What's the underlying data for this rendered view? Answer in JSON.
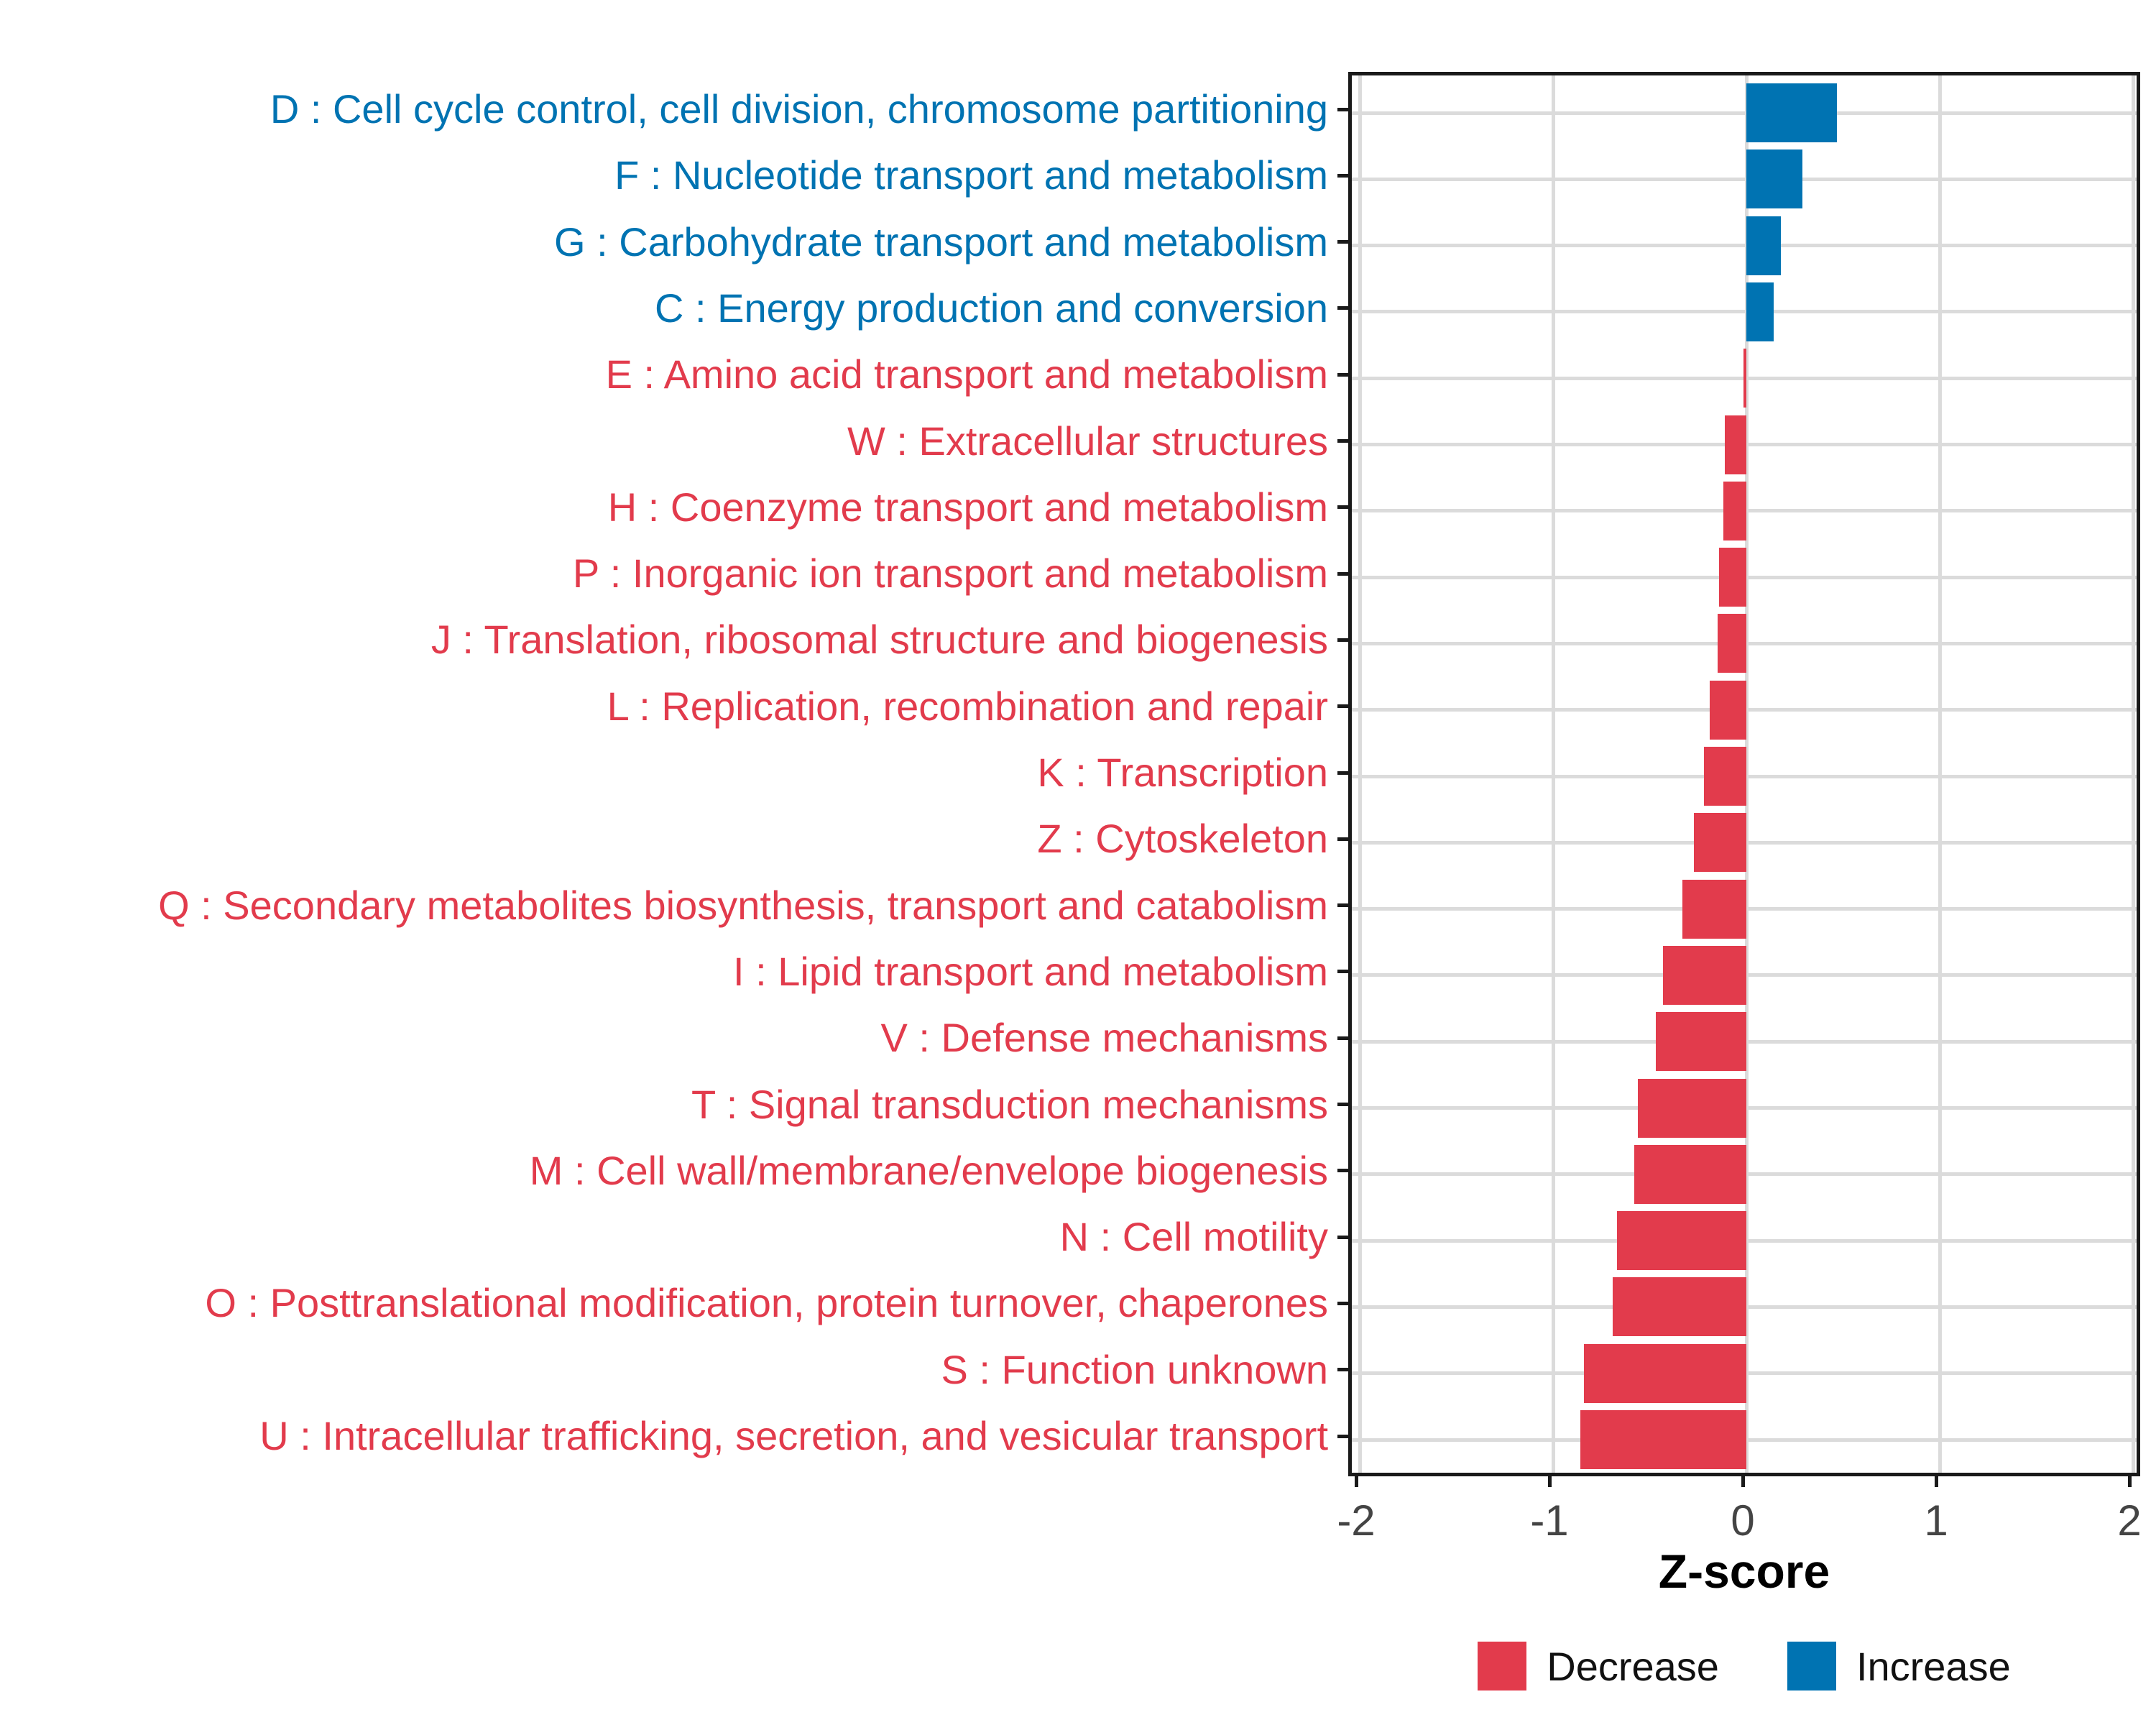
{
  "chart_data": {
    "type": "bar",
    "orientation": "horizontal",
    "title": "",
    "xlabel": "Z-score",
    "ylabel": "",
    "xlim": [
      -2,
      2
    ],
    "x_ticks": [
      -2,
      -1,
      0,
      1,
      2
    ],
    "x_tick_labels": [
      "-2",
      "-1",
      "0",
      "1",
      "2"
    ],
    "grid": true,
    "legend_position": "bottom",
    "categories": [
      "D : Cell cycle control, cell division, chromosome partitioning",
      "F : Nucleotide transport and metabolism",
      "G : Carbohydrate transport and metabolism",
      "C : Energy production and conversion",
      "E : Amino acid transport and metabolism",
      "W : Extracellular structures",
      "H : Coenzyme transport and metabolism",
      "P : Inorganic ion transport and metabolism",
      "J : Translation, ribosomal structure and biogenesis",
      "L : Replication, recombination and repair",
      "K : Transcription",
      "Z : Cytoskeleton",
      "Q : Secondary metabolites biosynthesis, transport and catabolism",
      "I : Lipid transport and metabolism",
      "V : Defense mechanisms",
      "T : Signal transduction mechanisms",
      "M : Cell wall/membrane/envelope biogenesis",
      "N : Cell motility",
      "O : Posttranslational modification, protein turnover, chaperones",
      "S : Function unknown",
      "U : Intracellular trafficking, secretion, and vesicular transport"
    ],
    "values": [
      0.47,
      0.29,
      0.18,
      0.14,
      -0.015,
      -0.11,
      -0.12,
      -0.14,
      -0.15,
      -0.19,
      -0.22,
      -0.27,
      -0.33,
      -0.43,
      -0.47,
      -0.56,
      -0.58,
      -0.67,
      -0.69,
      -0.84,
      -0.86
    ],
    "series_colors": {
      "increase": "#0073B2",
      "decrease": "#E23B4C"
    },
    "legend": [
      {
        "key": "decrease",
        "label": "Decrease",
        "color": "#E23B4C"
      },
      {
        "key": "increase",
        "label": "Increase",
        "color": "#0073B2"
      }
    ]
  },
  "style_colors": {
    "grid": "#dbdbdb",
    "panel_border": "#1a1a1a",
    "axis_text": "#444444",
    "axis_title": "#000000"
  }
}
